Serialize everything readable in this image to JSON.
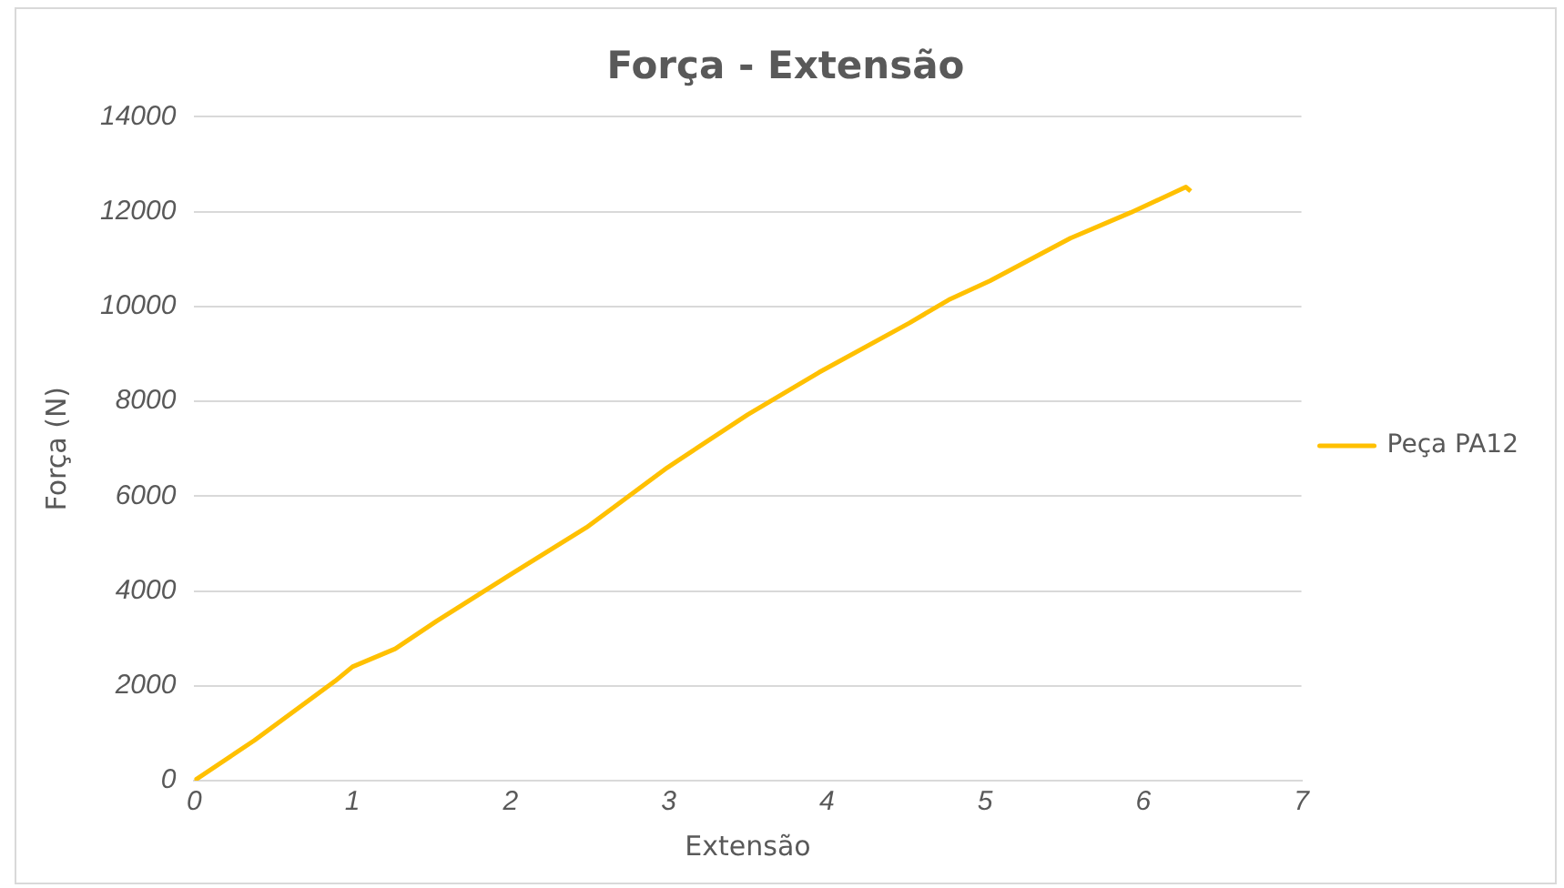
{
  "chart_data": {
    "type": "line",
    "title": "Força - Extensão",
    "xlabel": "Extensão",
    "ylabel": "Força (N)",
    "series": [
      {
        "name": "Peça PA12",
        "color": "#ffc000",
        "x": [
          0,
          0.38,
          0.89,
          1,
          1.27,
          1.53,
          2,
          2.48,
          2.99,
          3.5,
          3.95,
          4.52,
          4.77,
          5.03,
          5.54,
          5.92,
          6.27,
          6.3
        ],
        "values": [
          0,
          850,
          2100,
          2400,
          2780,
          3360,
          4350,
          5340,
          6600,
          7720,
          8610,
          9650,
          10140,
          10540,
          11440,
          11980,
          12520,
          12430
        ]
      }
    ],
    "xlim": [
      0,
      7
    ],
    "xticks": [
      0,
      1,
      2,
      3,
      4,
      5,
      6,
      7
    ],
    "ylim": [
      0,
      14000
    ],
    "yticks": [
      0,
      2000,
      4000,
      6000,
      8000,
      10000,
      12000,
      14000
    ],
    "grid": "y",
    "legend": "right",
    "marker": "none",
    "line_style": "solid"
  }
}
